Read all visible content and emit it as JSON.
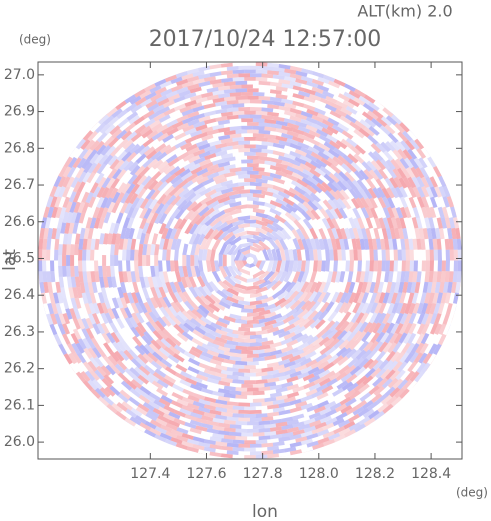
{
  "chart_data": {
    "type": "ppi",
    "title": "2017/10/24 12:57:00",
    "subtitle": "ALT(km) 2.0",
    "x_label": "lon",
    "y_label": "lat",
    "x_unit": "(deg)",
    "y_unit": "(deg)",
    "xlim": [
      127.0,
      128.51
    ],
    "ylim": [
      25.954,
      27.035
    ],
    "xticks": [
      {
        "value": 127.4,
        "label": "127.4"
      },
      {
        "value": 127.6,
        "label": "127.6"
      },
      {
        "value": 127.8,
        "label": "127.8"
      },
      {
        "value": 128.0,
        "label": "128.0"
      },
      {
        "value": 128.2,
        "label": "128.2"
      },
      {
        "value": 128.4,
        "label": "128.4"
      }
    ],
    "yticks": [
      {
        "value": 26.0,
        "label": "26.0"
      },
      {
        "value": 26.1,
        "label": "26.1"
      },
      {
        "value": 26.2,
        "label": "26.2"
      },
      {
        "value": 26.3,
        "label": "26.3"
      },
      {
        "value": 26.4,
        "label": "26.4"
      },
      {
        "value": 26.5,
        "label": "26.5"
      },
      {
        "value": 26.6,
        "label": "26.6"
      },
      {
        "value": 26.7,
        "label": "26.7"
      },
      {
        "value": 26.8,
        "label": "26.8"
      },
      {
        "value": 26.9,
        "label": "26.9"
      },
      {
        "value": 27.0,
        "label": "27.0"
      }
    ],
    "grid": false
  }
}
